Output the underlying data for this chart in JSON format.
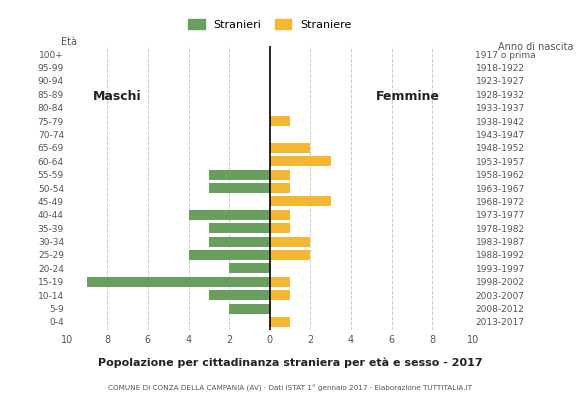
{
  "age_groups": [
    "0-4",
    "5-9",
    "10-14",
    "15-19",
    "20-24",
    "25-29",
    "30-34",
    "35-39",
    "40-44",
    "45-49",
    "50-54",
    "55-59",
    "60-64",
    "65-69",
    "70-74",
    "75-79",
    "80-84",
    "85-89",
    "90-94",
    "95-99",
    "100+"
  ],
  "birth_years": [
    "2013-2017",
    "2008-2012",
    "2003-2007",
    "1998-2002",
    "1993-1997",
    "1988-1992",
    "1983-1987",
    "1978-1982",
    "1973-1977",
    "1968-1972",
    "1963-1967",
    "1958-1962",
    "1953-1957",
    "1948-1952",
    "1943-1947",
    "1938-1942",
    "1933-1937",
    "1928-1932",
    "1923-1927",
    "1918-1922",
    "1917 o prima"
  ],
  "males": [
    0,
    2,
    3,
    9,
    2,
    4,
    3,
    3,
    4,
    0,
    3,
    3,
    0,
    0,
    0,
    0,
    0,
    0,
    0,
    0,
    0
  ],
  "females": [
    1,
    0,
    1,
    1,
    0,
    2,
    2,
    1,
    1,
    3,
    1,
    1,
    3,
    2,
    0,
    1,
    0,
    0,
    0,
    0,
    0
  ],
  "male_color": "#6a9e5f",
  "female_color": "#f5b731",
  "background_color": "#ffffff",
  "title": "Popolazione per cittadinanza straniera per età e sesso - 2017",
  "subtitle": "COMUNE DI CONZA DELLA CAMPANIA (AV) · Dati ISTAT 1° gennaio 2017 · Elaborazione TUTTITALIA.IT",
  "legend_male": "Stranieri",
  "legend_female": "Straniere",
  "label_eta": "Età",
  "label_anno": "Anno di nascita",
  "label_maschi": "Maschi",
  "label_femmine": "Femmine",
  "xlim": 10,
  "grid_color": "#cccccc",
  "axis_label_color": "#555555",
  "bar_height": 0.75
}
